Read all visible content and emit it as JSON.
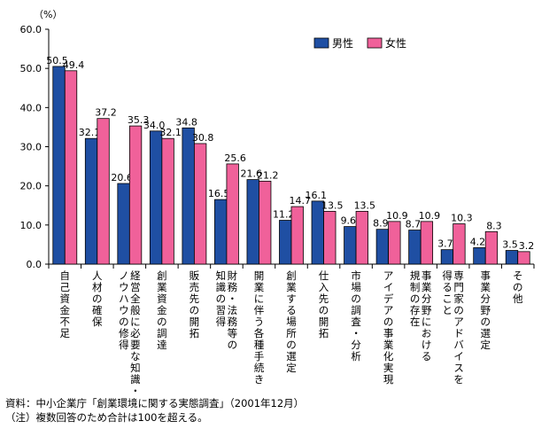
{
  "chart_data": {
    "type": "bar",
    "unit_label": "（%）",
    "ylim": [
      0,
      60
    ],
    "yticks": [
      "0.0",
      "10.0",
      "20.0",
      "30.0",
      "40.0",
      "50.0",
      "60.0"
    ],
    "categories": [
      "自己資金不足",
      "人材の確保",
      "経営全般に必要な知識・ノウハウの修得",
      "創業資金の調達",
      "販売先の開拓",
      "財務・法務等の知識の習得",
      "開業に伴う各種手続き",
      "創業する場所の選定",
      "仕入先の開拓",
      "市場の調査・分析",
      "アイデアの事業化実現",
      "事業分野における規制の存在",
      "専門家のアドバイスを得ること",
      "事業分野の選定",
      "その他"
    ],
    "category_columns": [
      [
        "自己資金不足"
      ],
      [
        "人材の確保"
      ],
      [
        "経営全般に必要な知識・",
        "ノウハウの修得"
      ],
      [
        "創業資金の調達"
      ],
      [
        "販売先の開拓"
      ],
      [
        "財務・法務等の",
        "知識の習得"
      ],
      [
        "開業に伴う各種手続き"
      ],
      [
        "創業する場所の選定"
      ],
      [
        "仕入先の開拓"
      ],
      [
        "市場の調査・分析"
      ],
      [
        "アイデアの事業化実現"
      ],
      [
        "事業分野における",
        "規制の存在"
      ],
      [
        "専門家のアドバイスを",
        "得ること"
      ],
      [
        "事業分野の選定"
      ],
      [
        "その他"
      ]
    ],
    "series": [
      {
        "name": "男性",
        "color": "#1f4fa3",
        "values": [
          50.5,
          32.1,
          20.6,
          34.0,
          34.8,
          16.5,
          21.6,
          11.2,
          16.1,
          9.6,
          8.9,
          8.7,
          3.7,
          4.2,
          3.5
        ]
      },
      {
        "name": "女性",
        "color": "#f0619a",
        "values": [
          49.4,
          37.2,
          35.3,
          32.1,
          30.8,
          25.6,
          21.2,
          14.7,
          13.5,
          13.5,
          10.9,
          10.9,
          10.3,
          8.3,
          3.2
        ]
      }
    ],
    "value_labels": [
      [
        "50.5",
        "32.1",
        "20.6",
        "34.0",
        "34.8",
        "16.5",
        "21.6",
        "11.2",
        "16.1",
        "9.6",
        "8.9",
        "8.7",
        "3.7",
        "4.2",
        "3.5"
      ],
      [
        "49.4",
        "37.2",
        "35.3",
        "32.1",
        "30.8",
        "25.6",
        "21.2",
        "14.7",
        "13.5",
        "13.5",
        "10.9",
        "10.9",
        "10.3",
        "8.3",
        "3.2"
      ]
    ],
    "legend_position": "top-right",
    "grid": false
  },
  "notes": {
    "source": "資料：中小企業庁「創業環境に関する実態調査」（2001年12月）",
    "caveat": "（注）複数回答のため合計は100を超える。"
  }
}
